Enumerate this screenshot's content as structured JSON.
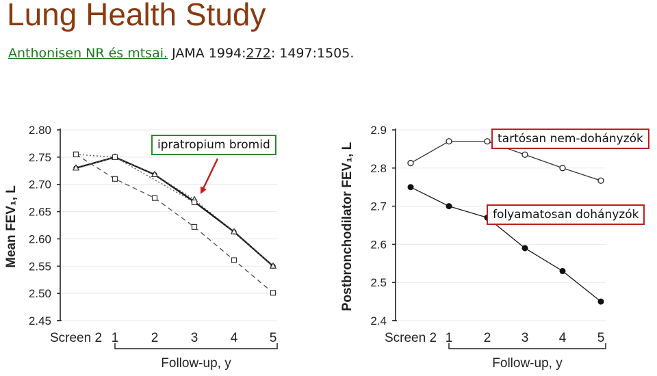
{
  "header": {
    "title": "Lung Health Study",
    "ref_link": "Anthonisen NR és mtsai.",
    "ref_mid": " JAMA 1994:",
    "ref_num": "272",
    "ref_end": ": 1497:1505."
  },
  "annotations": {
    "ipratropium": "ipratropium  bromid",
    "nonsmokers": "tartósan nem-dohányzók",
    "smokers": "folyamatosan dohányzók"
  },
  "colors": {
    "title": "#8a3a10",
    "ref_link": "#1a7a1a",
    "callout_green": "#2a8a2a",
    "callout_red": "#b82020",
    "arrow": "#c02020"
  },
  "chart_data": [
    {
      "type": "line",
      "categories": [
        "Screen 2",
        "1",
        "2",
        "3",
        "4",
        "5"
      ],
      "xlabel": "Follow-up, y",
      "ylabel": "Mean FEV₁, L",
      "ylim": [
        2.45,
        2.8
      ],
      "yticks": [
        "2.80",
        "2.75",
        "2.70",
        "2.65",
        "2.60",
        "2.55",
        "2.50",
        "2.45"
      ],
      "series": [
        {
          "marker": "filled-circle",
          "style": "solid-bold",
          "values": [
            2.73,
            2.75,
            2.718,
            2.668,
            2.613,
            2.55
          ]
        },
        {
          "marker": "triangle",
          "style": "dotted",
          "values": [
            2.73,
            2.75,
            2.718,
            2.672,
            2.613,
            2.55
          ]
        },
        {
          "marker": "square",
          "style": "dashed",
          "values": [
            2.755,
            2.71,
            2.675,
            2.622,
            2.561,
            2.501
          ]
        },
        {
          "marker": "square",
          "style": "dotted",
          "values": [
            2.755,
            2.75,
            null,
            2.667,
            null,
            null
          ]
        }
      ]
    },
    {
      "type": "line",
      "categories": [
        "Screen 2",
        "1",
        "2",
        "3",
        "4",
        "5"
      ],
      "xlabel": "Follow-up, y",
      "ylabel": "Postbronchodilator FEV₁, L",
      "ylim": [
        2.4,
        2.9
      ],
      "yticks": [
        "2.9",
        "2.8",
        "2.7",
        "2.6",
        "2.5",
        "2.4"
      ],
      "series": [
        {
          "name": "tartósan nem-dohányzók",
          "marker": "open-circle",
          "values": [
            2.813,
            2.87,
            2.87,
            2.835,
            2.8,
            2.767
          ]
        },
        {
          "name": "folyamatosan dohányzók",
          "marker": "filled-circle",
          "values": [
            2.75,
            2.7,
            2.67,
            2.59,
            2.53,
            2.45
          ]
        }
      ]
    }
  ]
}
